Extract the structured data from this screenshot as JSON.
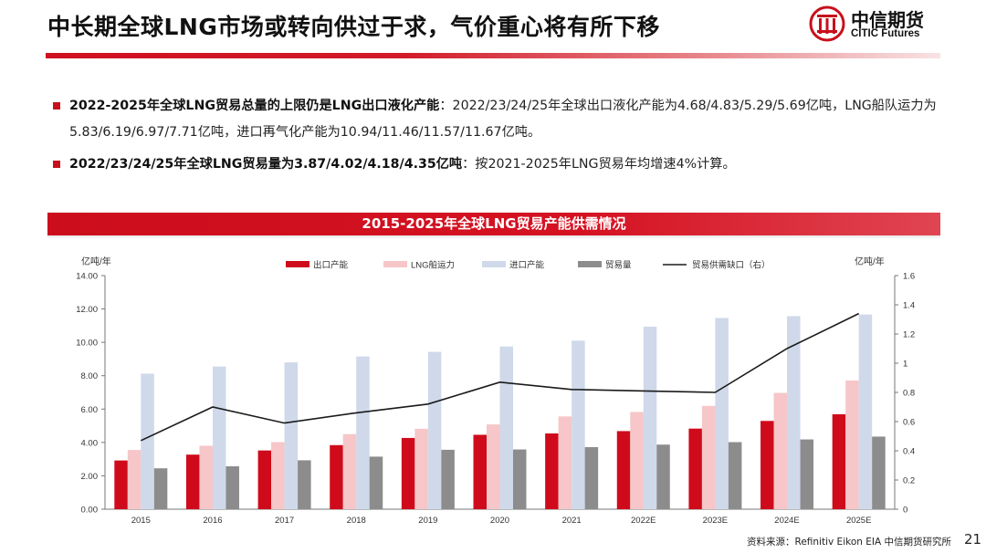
{
  "page": {
    "title": "中长期全球LNG市场或转向供过于求，气价重心将有所下移",
    "logo": {
      "name_cn": "中信期货",
      "name_en": "CITIC Futures"
    },
    "bullets": [
      {
        "bold": "2022-2025年全球LNG贸易总量的上限仍是LNG出口液化产能",
        "text": "：2022/23/24/25年全球出口液化产能为4.68/4.83/5.29/5.69亿吨，LNG船队运力为5.83/6.19/6.97/7.71亿吨，进口再气化产能为10.94/11.46/11.57/11.67亿吨。"
      },
      {
        "bold": "2022/23/24/25年全球LNG贸易量为3.87/4.02/4.18/4.35亿吨",
        "text": "：按2021-2025年LNG贸易年均增速4%计算。"
      }
    ],
    "source": "资料来源：Refinitiv Eikon  EIA  中信期货研究所",
    "page_number": "21"
  },
  "colors": {
    "accent": "#cc0d1c",
    "export": "#cf0b1b",
    "fleet": "#f6c6c8",
    "import": "#cfd9ea",
    "trade": "#8c8c8c",
    "gap_line": "#1a1a1a"
  },
  "chart_data": {
    "type": "bar",
    "title": "2015-2025年全球LNG贸易产能供需情况",
    "ylabel_left": "亿吨/年",
    "ylabel_right": "亿吨/年",
    "ylim_left": [
      0,
      14
    ],
    "ylim_right": [
      0,
      1.6
    ],
    "yticks_left": [
      "0.00",
      "2.00",
      "4.00",
      "6.00",
      "8.00",
      "10.00",
      "12.00",
      "14.00"
    ],
    "yticks_right": [
      "0",
      "0.2",
      "0.4",
      "0.6",
      "0.8",
      "1",
      "1.2",
      "1.4",
      "1.6"
    ],
    "legend_position": "top",
    "grid": false,
    "categories": [
      "2015",
      "2016",
      "2017",
      "2018",
      "2019",
      "2020",
      "2021",
      "2022E",
      "2023E",
      "2024E",
      "2025E"
    ],
    "series": [
      {
        "name": "出口产能",
        "type": "bar",
        "axis": "left",
        "values": [
          2.92,
          3.27,
          3.52,
          3.84,
          4.27,
          4.46,
          4.54,
          4.68,
          4.83,
          5.29,
          5.69
        ]
      },
      {
        "name": "LNG船运力",
        "type": "bar",
        "axis": "left",
        "values": [
          3.55,
          3.8,
          4.02,
          4.5,
          4.82,
          5.08,
          5.56,
          5.83,
          6.19,
          6.97,
          7.71
        ]
      },
      {
        "name": "进口产能",
        "type": "bar",
        "axis": "left",
        "values": [
          8.12,
          8.55,
          8.8,
          9.15,
          9.43,
          9.75,
          10.1,
          10.94,
          11.46,
          11.57,
          11.67
        ]
      },
      {
        "name": "贸易量",
        "type": "bar",
        "axis": "left",
        "values": [
          2.45,
          2.57,
          2.93,
          3.15,
          3.56,
          3.58,
          3.72,
          3.87,
          4.02,
          4.18,
          4.35
        ]
      },
      {
        "name": "贸易供需缺口（右）",
        "type": "line",
        "axis": "right",
        "values": [
          0.47,
          0.7,
          0.59,
          0.66,
          0.72,
          0.87,
          0.82,
          0.81,
          0.8,
          1.1,
          1.34
        ]
      }
    ]
  }
}
